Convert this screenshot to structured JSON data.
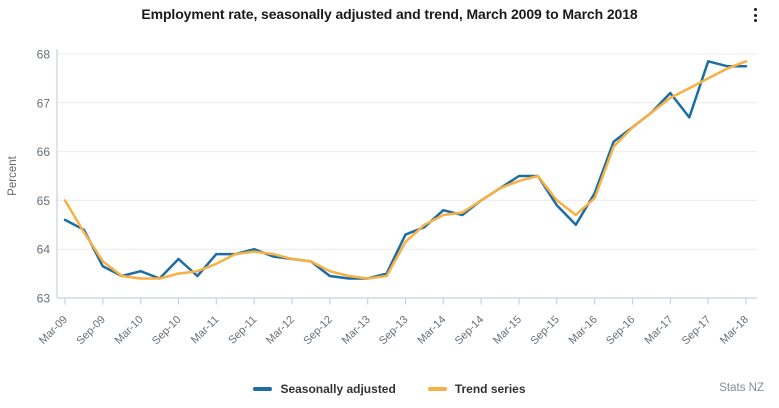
{
  "header": {
    "title": "Employment rate, seasonally adjusted and trend, March 2009 to March 2018"
  },
  "source": "Stats NZ",
  "colors": {
    "seasonally_adjusted": "#1c6da6",
    "trend": "#f8b042",
    "axis_line": "#c6d2de",
    "gridline": "#ebebeb",
    "tick_label": "#66707a",
    "axis_title": "#666666",
    "title_text": "#1a1a1a",
    "legend_text": "#333333",
    "source_text": "#848e96",
    "menu_icon": "#1a1a1a"
  },
  "legend": {
    "items": [
      {
        "label": "Seasonally adjusted"
      },
      {
        "label": "Trend series"
      }
    ]
  },
  "chart_data": {
    "type": "line",
    "title": "Employment rate, seasonally adjusted and trend, March 2009 to March 2018",
    "xlabel": "",
    "ylabel": "Percent",
    "ylim": [
      63,
      68
    ],
    "yticks": [
      63,
      64,
      65,
      66,
      67,
      68
    ],
    "grid": "horizontal",
    "legend_position": "bottom",
    "x_tick_step": 2,
    "categories": [
      "Mar-09",
      "Jun-09",
      "Sep-09",
      "Dec-09",
      "Mar-10",
      "Jun-10",
      "Sep-10",
      "Dec-10",
      "Mar-11",
      "Jun-11",
      "Sep-11",
      "Dec-11",
      "Mar-12",
      "Jun-12",
      "Sep-12",
      "Dec-12",
      "Mar-13",
      "Jun-13",
      "Sep-13",
      "Dec-13",
      "Mar-14",
      "Jun-14",
      "Sep-14",
      "Dec-14",
      "Mar-15",
      "Jun-15",
      "Sep-15",
      "Dec-15",
      "Mar-16",
      "Jun-16",
      "Sep-16",
      "Dec-16",
      "Mar-17",
      "Jun-17",
      "Sep-17",
      "Dec-17",
      "Mar-18"
    ],
    "series": [
      {
        "name": "Seasonally adjusted",
        "color": "#1c6da6",
        "values": [
          64.6,
          64.4,
          63.65,
          63.45,
          63.55,
          63.4,
          63.8,
          63.45,
          63.9,
          63.9,
          64.0,
          63.85,
          63.8,
          63.75,
          63.45,
          63.4,
          63.4,
          63.5,
          64.3,
          64.45,
          64.8,
          64.7,
          65.0,
          65.25,
          65.5,
          65.5,
          64.9,
          64.5,
          65.15,
          66.2,
          66.5,
          66.8,
          67.2,
          66.7,
          67.85,
          67.75,
          67.75
        ]
      },
      {
        "name": "Trend series",
        "color": "#f8b042",
        "values": [
          65.0,
          64.35,
          63.75,
          63.45,
          63.4,
          63.4,
          63.5,
          63.55,
          63.7,
          63.9,
          63.95,
          63.9,
          63.8,
          63.75,
          63.55,
          63.45,
          63.4,
          63.45,
          64.15,
          64.5,
          64.7,
          64.75,
          65.0,
          65.25,
          65.4,
          65.5,
          65.0,
          64.7,
          65.05,
          66.1,
          66.5,
          66.8,
          67.1,
          67.3,
          67.5,
          67.7,
          67.85
        ]
      }
    ]
  }
}
